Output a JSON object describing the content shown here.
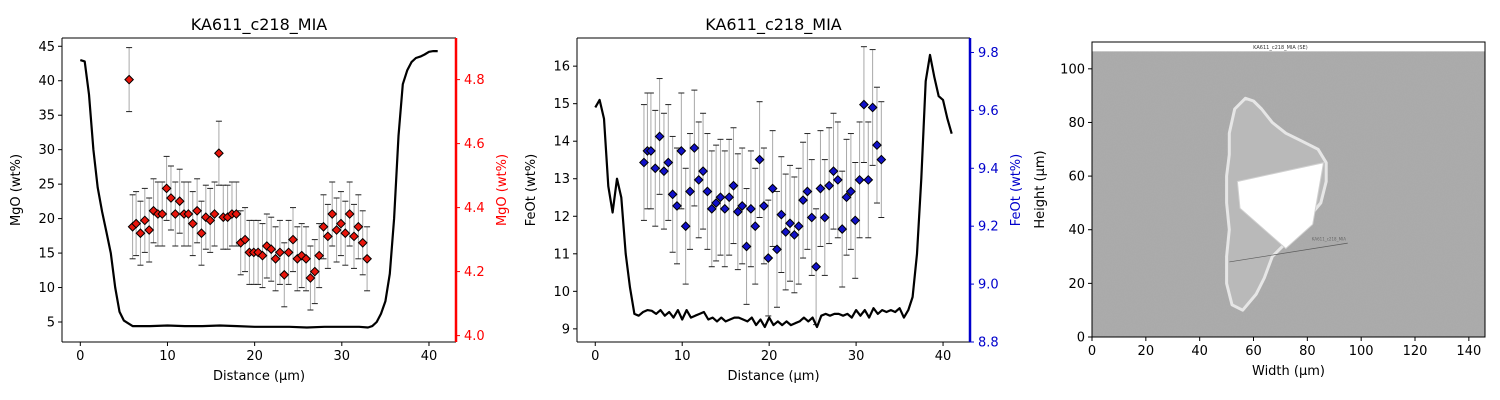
{
  "chart_data": [
    {
      "type": "line+scatter",
      "title": "KA611_c218_MIA",
      "xlabel": "Distance (µm)",
      "ylabel": "MgO (wt%)",
      "y2label": "MgO (wt%)",
      "xlim": [
        -2.1,
        43.1
      ],
      "ylim": [
        2.1,
        46.2
      ],
      "y2lim": [
        3.98,
        4.93
      ],
      "xticks": [
        "0",
        "10",
        "20",
        "30",
        "40"
      ],
      "yticks": [
        "5",
        "10",
        "15",
        "20",
        "25",
        "30",
        "35",
        "40",
        "45"
      ],
      "y2ticks": [
        "4.0",
        "4.2",
        "4.4",
        "4.6",
        "4.8"
      ],
      "y2_color": "#ff0000",
      "marker_color": "#e8150b",
      "profile": {
        "x": [
          0,
          0.5,
          1,
          1.5,
          2,
          2.5,
          3,
          3.5,
          4,
          4.5,
          5,
          6,
          8,
          10,
          12,
          14,
          16,
          18,
          20,
          22,
          24,
          26,
          28,
          30,
          32,
          33,
          33.5,
          34,
          34.5,
          35,
          35.5,
          36,
          36.5,
          37,
          37.5,
          38,
          38.5,
          39,
          39.5,
          40,
          40.5,
          41
        ],
        "y": [
          43,
          42.8,
          38,
          30,
          24.5,
          21,
          18,
          15,
          10,
          6.5,
          5.2,
          4.4,
          4.4,
          4.5,
          4.4,
          4.4,
          4.5,
          4.4,
          4.3,
          4.3,
          4.3,
          4.2,
          4.3,
          4.3,
          4.3,
          4.2,
          4.4,
          5,
          6.2,
          8,
          12,
          20,
          32,
          39.5,
          41.5,
          42.7,
          43.3,
          43.5,
          43.8,
          44.2,
          44.3,
          44.3
        ]
      },
      "points": {
        "x": [
          5.6,
          6,
          6.4,
          6.9,
          7.4,
          7.9,
          8.4,
          8.9,
          9.4,
          9.9,
          10.4,
          10.9,
          11.4,
          11.9,
          12.4,
          12.9,
          13.4,
          13.9,
          14.4,
          14.9,
          15.4,
          15.9,
          16.4,
          16.9,
          17.4,
          17.9,
          18.4,
          18.9,
          19.4,
          19.9,
          20.4,
          20.9,
          21.4,
          21.9,
          22.4,
          22.9,
          23.4,
          23.9,
          24.4,
          24.9,
          25.4,
          25.9,
          26.4,
          26.9,
          27.4,
          27.9,
          28.4,
          28.9,
          29.4,
          29.9,
          30.4,
          30.9,
          31.4,
          31.9,
          32.4,
          32.9
        ],
        "y": [
          4.8,
          4.34,
          4.35,
          4.32,
          4.36,
          4.33,
          4.39,
          4.38,
          4.38,
          4.46,
          4.43,
          4.38,
          4.42,
          4.38,
          4.38,
          4.35,
          4.39,
          4.32,
          4.37,
          4.36,
          4.38,
          4.57,
          4.37,
          4.37,
          4.38,
          4.38,
          4.29,
          4.3,
          4.26,
          4.26,
          4.26,
          4.25,
          4.28,
          4.27,
          4.24,
          4.26,
          4.19,
          4.26,
          4.3,
          4.24,
          4.25,
          4.24,
          4.18,
          4.2,
          4.25,
          4.34,
          4.31,
          4.38,
          4.33,
          4.35,
          4.32,
          4.38,
          4.31,
          4.34,
          4.29,
          4.24
        ],
        "err": [
          0.1,
          0.1,
          0.1,
          0.1,
          0.1,
          0.1,
          0.1,
          0.1,
          0.1,
          0.1,
          0.1,
          0.1,
          0.1,
          0.1,
          0.1,
          0.1,
          0.1,
          0.1,
          0.1,
          0.1,
          0.1,
          0.1,
          0.1,
          0.1,
          0.1,
          0.1,
          0.1,
          0.1,
          0.1,
          0.1,
          0.1,
          0.1,
          0.1,
          0.1,
          0.1,
          0.1,
          0.1,
          0.1,
          0.1,
          0.1,
          0.1,
          0.1,
          0.1,
          0.1,
          0.1,
          0.1,
          0.1,
          0.1,
          0.1,
          0.1,
          0.1,
          0.1,
          0.1,
          0.1,
          0.1,
          0.1
        ]
      }
    },
    {
      "type": "line+scatter",
      "title": "KA611_c218_MIA",
      "xlabel": "Distance (µm)",
      "ylabel": "FeOt (wt%)",
      "y2label": "FeOt (wt%)",
      "xlim": [
        -2.1,
        43.1
      ],
      "ylim": [
        8.65,
        16.75
      ],
      "y2lim": [
        8.8,
        9.85
      ],
      "xticks": [
        "0",
        "10",
        "20",
        "30",
        "40"
      ],
      "yticks": [
        "9",
        "10",
        "11",
        "12",
        "13",
        "14",
        "15",
        "16"
      ],
      "y2ticks": [
        "8.8",
        "9.0",
        "9.2",
        "9.4",
        "9.6",
        "9.8"
      ],
      "y2_color": "#0000cc",
      "marker_color": "#1010c8",
      "profile": {
        "x": [
          0,
          0.5,
          1,
          1.5,
          2,
          2.5,
          3,
          3.5,
          4,
          4.5,
          5,
          5.5,
          6,
          6.5,
          7,
          7.5,
          8,
          8.5,
          9,
          9.5,
          10,
          10.5,
          11,
          11.5,
          12,
          12.5,
          13,
          13.5,
          14,
          14.5,
          15,
          15.5,
          16,
          16.5,
          17,
          17.5,
          18,
          18.5,
          19,
          19.5,
          20,
          20.5,
          21,
          21.5,
          22,
          22.5,
          23,
          23.5,
          24,
          24.5,
          25,
          25.5,
          26,
          26.5,
          27,
          27.5,
          28,
          28.5,
          29,
          29.5,
          30,
          30.5,
          31,
          31.5,
          32,
          32.5,
          33,
          33.5,
          34,
          34.5,
          35,
          35.5,
          36,
          36.5,
          37,
          37.5,
          38,
          38.5,
          39,
          39.5,
          40,
          40.5,
          41
        ],
        "y": [
          14.9,
          15.1,
          14.6,
          12.8,
          12.1,
          13,
          12.5,
          11,
          10.1,
          9.4,
          9.35,
          9.45,
          9.5,
          9.48,
          9.4,
          9.5,
          9.35,
          9.45,
          9.3,
          9.5,
          9.25,
          9.5,
          9.3,
          9.35,
          9.4,
          9.45,
          9.25,
          9.3,
          9.2,
          9.3,
          9.2,
          9.25,
          9.3,
          9.3,
          9.25,
          9.2,
          9.3,
          9.1,
          9.25,
          9.05,
          9.3,
          9.1,
          9.2,
          9.1,
          9.2,
          9.1,
          9.15,
          9.2,
          9.3,
          9.2,
          9.3,
          9.05,
          9.35,
          9.4,
          9.35,
          9.4,
          9.4,
          9.35,
          9.4,
          9.3,
          9.5,
          9.35,
          9.5,
          9.3,
          9.55,
          9.4,
          9.5,
          9.45,
          9.5,
          9.45,
          9.55,
          9.3,
          9.5,
          9.85,
          11,
          13,
          15.6,
          16.3,
          15.7,
          15.2,
          15.1,
          14.6,
          14.2
        ]
      },
      "points": {
        "x": [
          5.6,
          6,
          6.4,
          6.9,
          7.4,
          7.9,
          8.4,
          8.9,
          9.4,
          9.9,
          10.4,
          10.9,
          11.4,
          11.9,
          12.4,
          12.9,
          13.4,
          13.9,
          14.4,
          14.9,
          15.4,
          15.9,
          16.4,
          16.9,
          17.4,
          17.9,
          18.4,
          18.9,
          19.4,
          19.9,
          20.4,
          20.9,
          21.4,
          21.9,
          22.4,
          22.9,
          23.4,
          23.9,
          24.4,
          24.9,
          25.4,
          25.9,
          26.4,
          26.9,
          27.4,
          27.9,
          28.4,
          28.9,
          29.4,
          29.9,
          30.4,
          30.9,
          31.4,
          31.9,
          32.4,
          32.9
        ],
        "y": [
          9.42,
          9.46,
          9.46,
          9.4,
          9.51,
          9.39,
          9.42,
          9.31,
          9.27,
          9.46,
          9.2,
          9.32,
          9.47,
          9.36,
          9.39,
          9.32,
          9.26,
          9.28,
          9.3,
          9.26,
          9.3,
          9.34,
          9.25,
          9.27,
          9.13,
          9.26,
          9.2,
          9.43,
          9.27,
          9.09,
          9.33,
          9.12,
          9.24,
          9.18,
          9.21,
          9.17,
          9.2,
          9.29,
          9.32,
          9.23,
          9.06,
          9.33,
          9.23,
          9.34,
          9.39,
          9.36,
          9.19,
          9.3,
          9.32,
          9.22,
          9.36,
          9.62,
          9.36,
          9.61,
          9.48,
          9.43
        ],
        "err": [
          0.2,
          0.2,
          0.2,
          0.2,
          0.2,
          0.2,
          0.2,
          0.2,
          0.2,
          0.2,
          0.2,
          0.2,
          0.2,
          0.2,
          0.2,
          0.2,
          0.2,
          0.2,
          0.2,
          0.2,
          0.2,
          0.2,
          0.2,
          0.2,
          0.2,
          0.2,
          0.2,
          0.2,
          0.2,
          0.2,
          0.2,
          0.2,
          0.2,
          0.2,
          0.2,
          0.2,
          0.2,
          0.2,
          0.2,
          0.2,
          0.2,
          0.2,
          0.2,
          0.2,
          0.2,
          0.2,
          0.2,
          0.2,
          0.2,
          0.2,
          0.2,
          0.2,
          0.2,
          0.2,
          0.2,
          0.2
        ]
      }
    },
    {
      "type": "image",
      "image_title": "KA611_c218_MIA (SE)",
      "xlabel": "Width (µm)",
      "ylabel": "Height (µm)",
      "xlim": [
        0,
        146
      ],
      "ylim": [
        0,
        110
      ],
      "xticks": [
        "0",
        "20",
        "40",
        "60",
        "80",
        "100",
        "120",
        "140"
      ],
      "yticks": [
        "0",
        "20",
        "40",
        "60",
        "80",
        "100"
      ],
      "profile_line_label": "KA611_c218_MIA"
    }
  ]
}
